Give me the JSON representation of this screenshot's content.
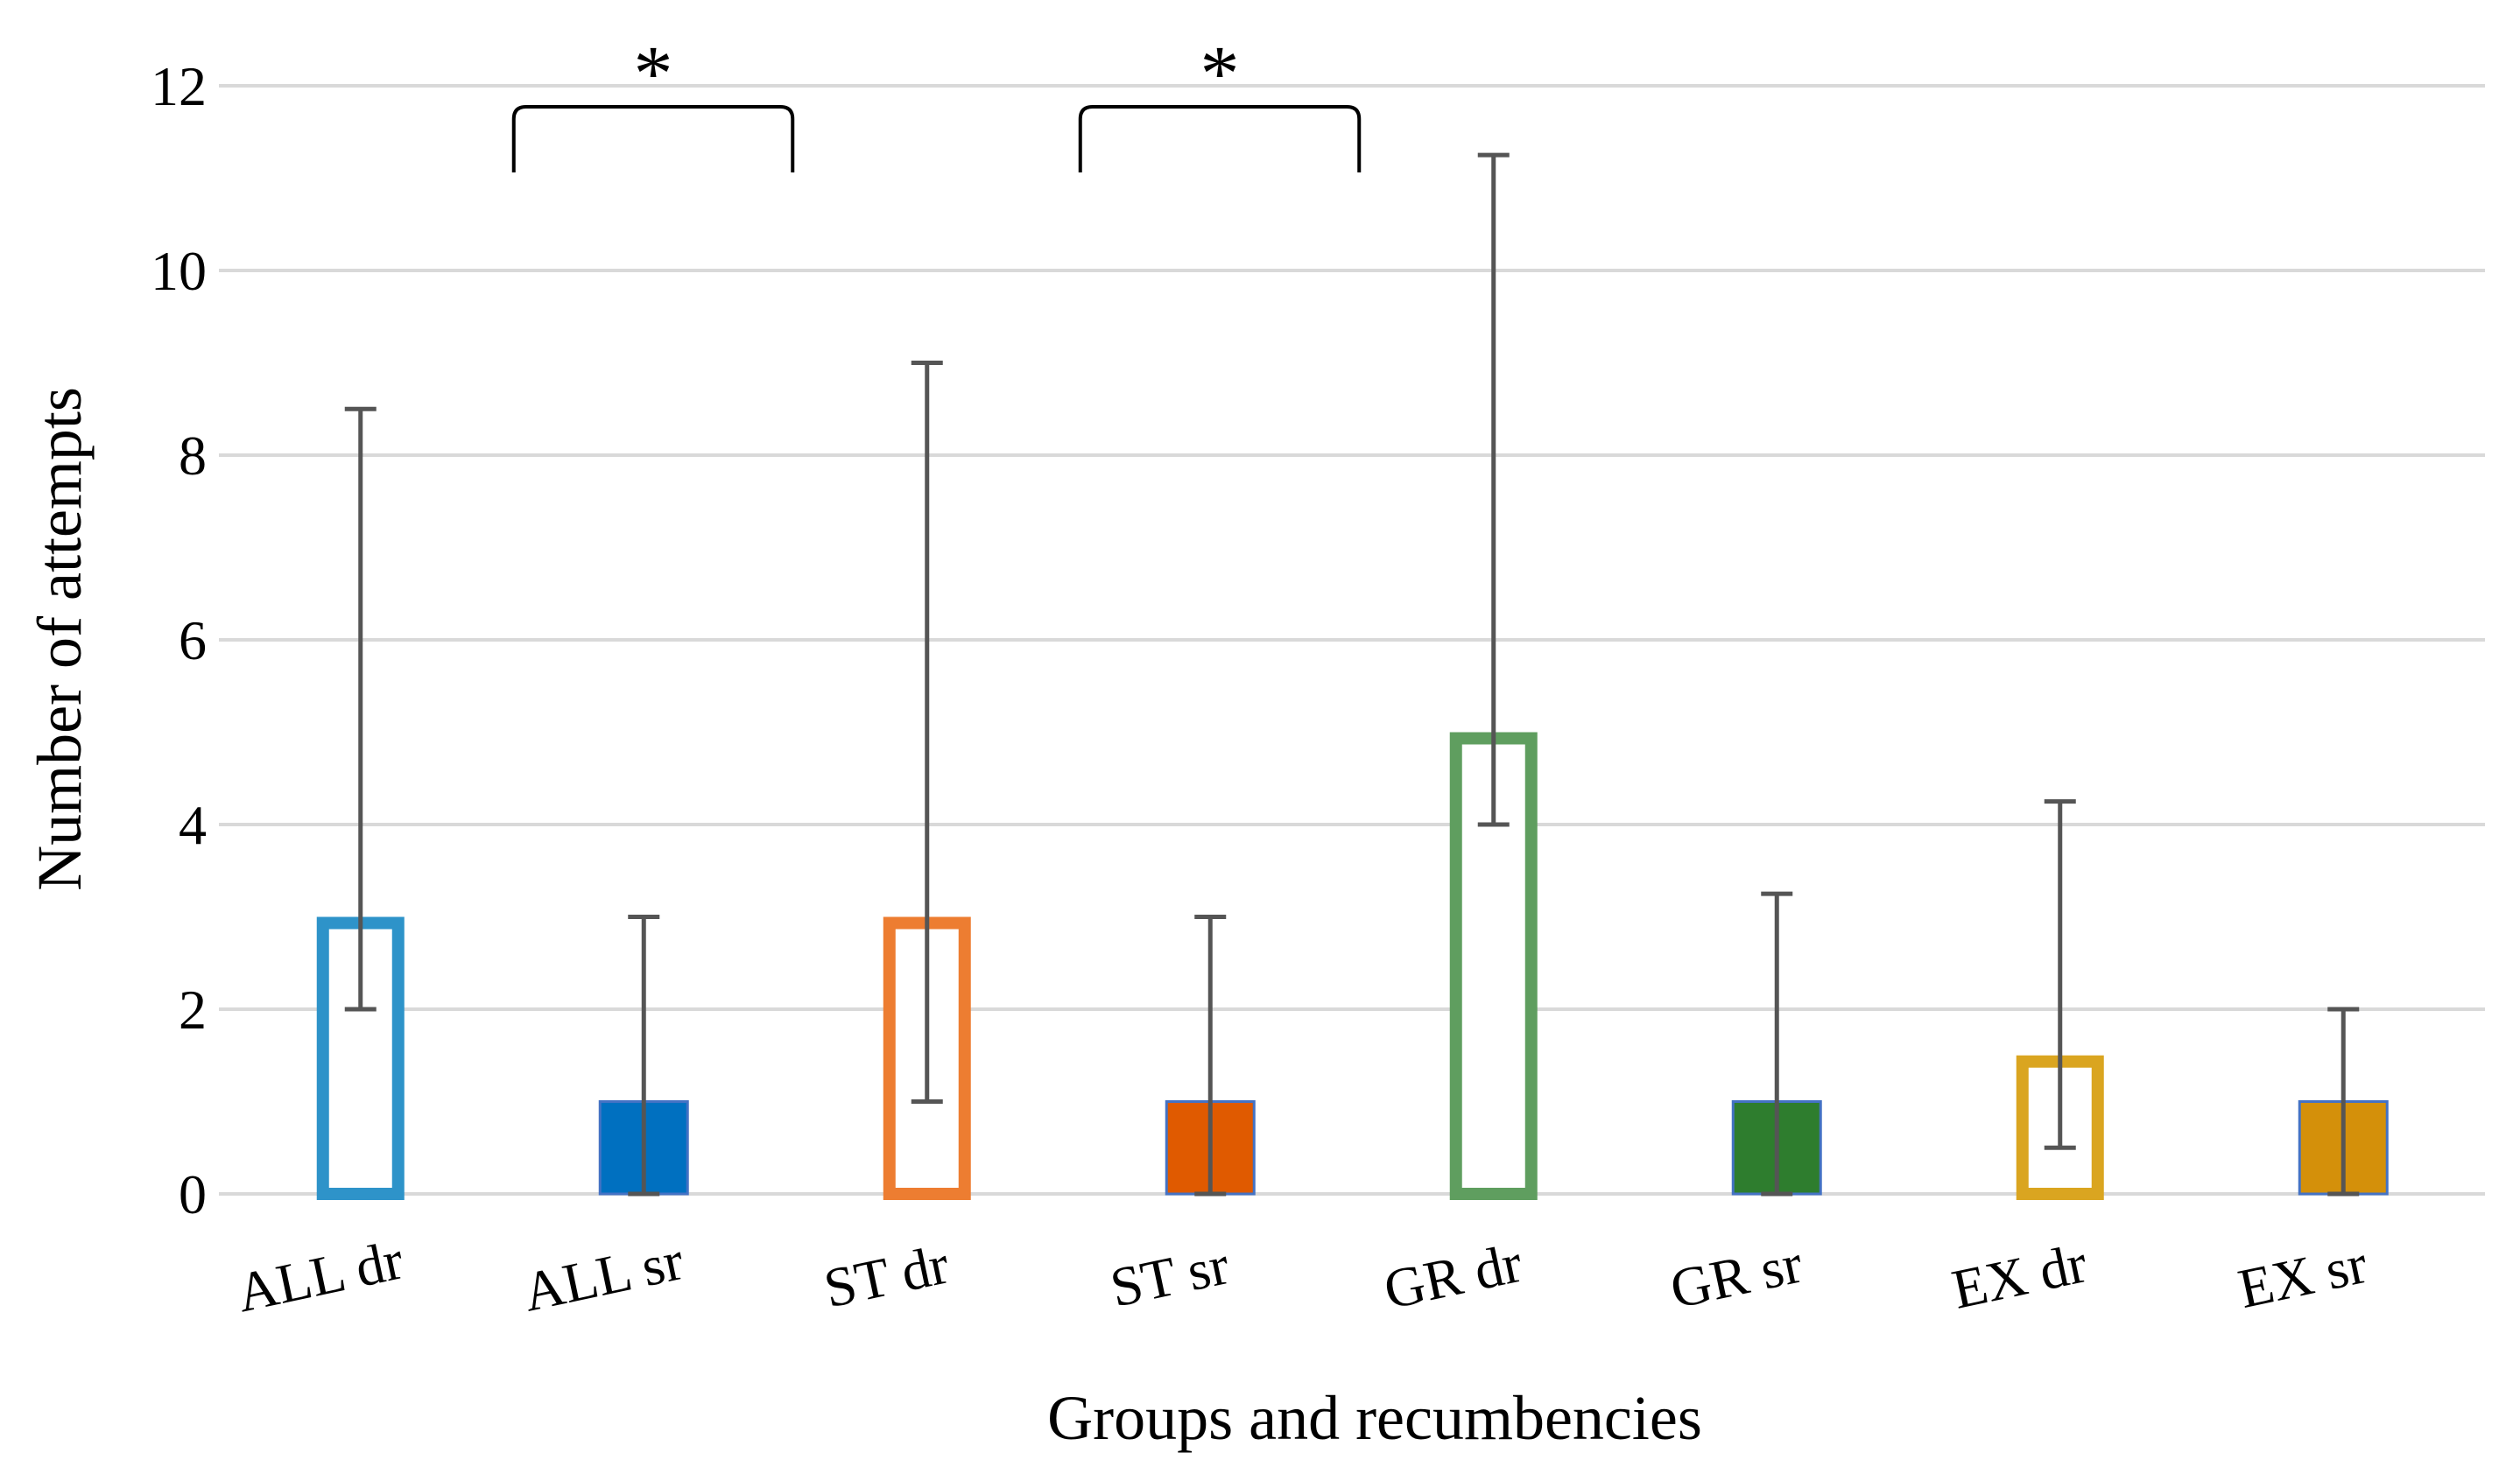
{
  "chart_data": {
    "type": "bar",
    "title": "",
    "xlabel": "Groups and recumbencies",
    "ylabel": "Number of attempts",
    "ylim": [
      0,
      12
    ],
    "yticks": [
      "0",
      "2",
      "4",
      "6",
      "8",
      "10",
      "12"
    ],
    "grid": true,
    "categories": [
      "ALL dr",
      "ALL sr",
      "ST dr",
      "ST sr",
      "GR dr",
      "GR sr",
      "EX dr",
      "EX sr"
    ],
    "values": [
      3,
      1,
      3,
      1,
      5,
      1,
      1.5,
      1
    ],
    "error_low": [
      2,
      0,
      1,
      0,
      4,
      0,
      0.5,
      0
    ],
    "error_high": [
      8.5,
      3,
      9,
      3,
      11.25,
      3.25,
      4.25,
      2
    ],
    "styles": [
      "outline",
      "filled",
      "outline",
      "filled",
      "outline",
      "filled",
      "outline",
      "filled"
    ],
    "colors": [
      "#2E93C9",
      "#0070C0",
      "#ED7D31",
      "#E05A00",
      "#5F9E5F",
      "#2E7D2E",
      "#DAA520",
      "#D4900A"
    ],
    "errorbar_color": "#555555",
    "gridline_color": "#D9D9D9",
    "significance": [
      {
        "from": "ALL dr",
        "to": "ALL sr",
        "label": "*"
      },
      {
        "from": "ST dr",
        "to": "ST sr",
        "label": "*"
      }
    ]
  }
}
